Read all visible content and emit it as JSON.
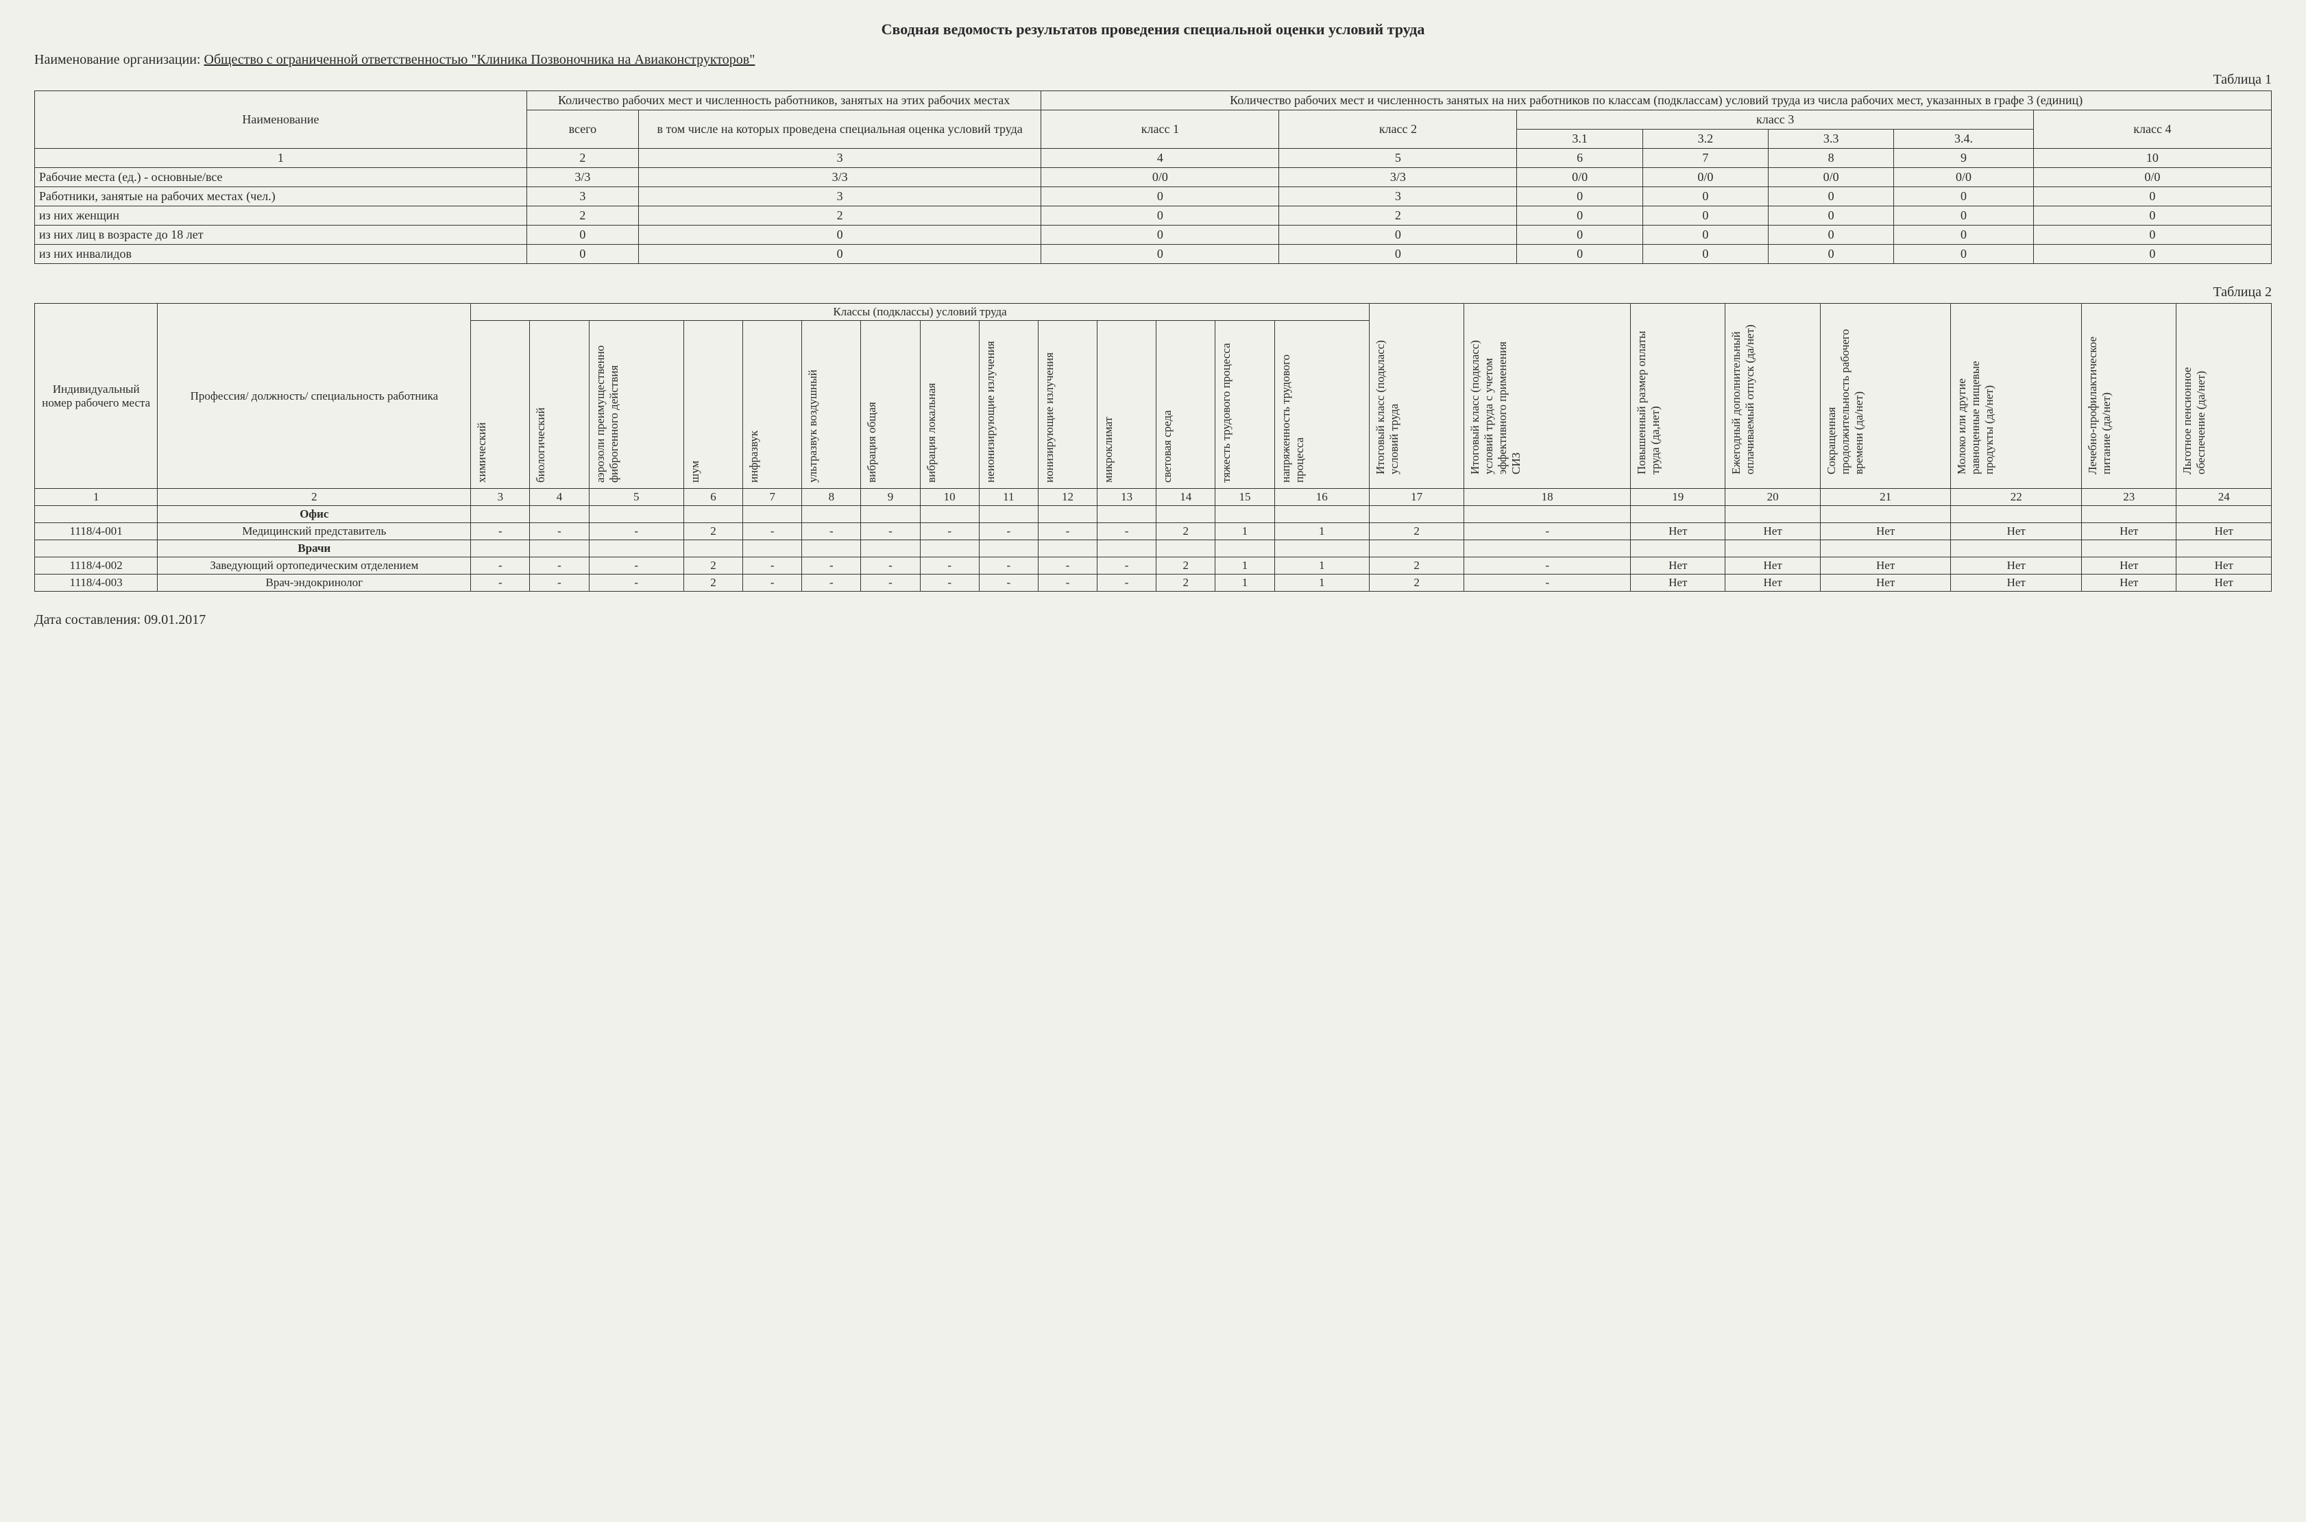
{
  "doc": {
    "title": "Сводная ведомость результатов проведения специальной оценки условий труда",
    "org_label": "Наименование организации:",
    "org_name": "Общество с ограниченной ответственностью \"Клиника Позвоночника на Авиаконструкторов\"",
    "table1_label": "Таблица 1",
    "table2_label": "Таблица 2",
    "date_label": "Дата составления:",
    "date_value": "09.01.2017"
  },
  "t1": {
    "h_name": "Наименование",
    "h_count_group": "Количество рабочих мест и численность работников, занятых на этих рабочих местах",
    "h_class_group": "Количество рабочих мест и численность занятых на них работников по классам (подклассам) условий труда из числа рабочих мест, указанных в графе 3 (единиц)",
    "h_total": "всего",
    "h_assessed": "в том числе на которых проведена специальная оценка условий труда",
    "h_class1": "класс 1",
    "h_class2": "класс 2",
    "h_class3": "класс 3",
    "h_class4": "класс 4",
    "h_31": "3.1",
    "h_32": "3.2",
    "h_33": "3.3",
    "h_34": "3.4.",
    "colnums": [
      "1",
      "2",
      "3",
      "4",
      "5",
      "6",
      "7",
      "8",
      "9",
      "10"
    ],
    "rows": [
      {
        "name": "Рабочие места (ед.)  -  основные/все",
        "v": [
          "3/3",
          "3/3",
          "0/0",
          "3/3",
          "0/0",
          "0/0",
          "0/0",
          "0/0",
          "0/0"
        ]
      },
      {
        "name": "Работники, занятые на рабочих местах (чел.)",
        "v": [
          "3",
          "3",
          "0",
          "3",
          "0",
          "0",
          "0",
          "0",
          "0"
        ]
      },
      {
        "name": "из них женщин",
        "v": [
          "2",
          "2",
          "0",
          "2",
          "0",
          "0",
          "0",
          "0",
          "0"
        ]
      },
      {
        "name": "из них лиц в возрасте до 18 лет",
        "v": [
          "0",
          "0",
          "0",
          "0",
          "0",
          "0",
          "0",
          "0",
          "0"
        ]
      },
      {
        "name": "из них инвалидов",
        "v": [
          "0",
          "0",
          "0",
          "0",
          "0",
          "0",
          "0",
          "0",
          "0"
        ]
      }
    ]
  },
  "t2": {
    "h_id": "Индивидуальный номер рабочего места",
    "h_prof": "Профессия/ должность/ специальность работника",
    "h_classes_group": "Классы (подклассы) условий труда",
    "cols": [
      "химический",
      "биологический",
      "аэрозоли преимущественно фиброгенного действия",
      "шум",
      "инфразвук",
      "ультразвук воздушный",
      "вибрация общая",
      "вибрация локальная",
      "неионизирующие излучения",
      "ионизирующие излучения",
      "микроклимат",
      "световая среда",
      "тяжесть трудового процесса",
      "напряженность трудового процесса"
    ],
    "extra_cols": [
      "Итоговый класс (подкласс) условий труда",
      "Итоговый класс (подкласс) условий труда с учетом эффективного применения СИЗ",
      "Повышенный размер оплаты труда (да,нет)",
      "Ежегодный дополнительный оплачиваемый отпуск (да/нет)",
      "Сокращенная продолжительность рабочего времени (да/нет)",
      "Молоко или другие равноценные пищевые продукты (да/нет)",
      "Лечебно-профилактическое питание  (да/нет)",
      "Льготное пенсионное обеспечение (да/нет)"
    ],
    "colnums": [
      "1",
      "2",
      "3",
      "4",
      "5",
      "6",
      "7",
      "8",
      "9",
      "10",
      "11",
      "12",
      "13",
      "14",
      "15",
      "16",
      "17",
      "18",
      "19",
      "20",
      "21",
      "22",
      "23",
      "24"
    ],
    "sections": [
      {
        "title": "Офис"
      },
      {
        "title": "Врачи"
      }
    ],
    "rows": [
      {
        "section": 0,
        "id": "1118/4-001",
        "prof": "Медицинский представитель",
        "v": [
          "-",
          "-",
          "-",
          "2",
          "-",
          "-",
          "-",
          "-",
          "-",
          "-",
          "-",
          "2",
          "1",
          "1",
          "2",
          "-",
          "Нет",
          "Нет",
          "Нет",
          "Нет",
          "Нет",
          "Нет"
        ]
      },
      {
        "section": 1,
        "id": "1118/4-002",
        "prof": "Заведующий ортопедическим отделением",
        "v": [
          "-",
          "-",
          "-",
          "2",
          "-",
          "-",
          "-",
          "-",
          "-",
          "-",
          "-",
          "2",
          "1",
          "1",
          "2",
          "-",
          "Нет",
          "Нет",
          "Нет",
          "Нет",
          "Нет",
          "Нет"
        ]
      },
      {
        "section": 1,
        "id": "1118/4-003",
        "prof": "Врач-эндокринолог",
        "v": [
          "-",
          "-",
          "-",
          "2",
          "-",
          "-",
          "-",
          "-",
          "-",
          "-",
          "-",
          "2",
          "1",
          "1",
          "2",
          "-",
          "Нет",
          "Нет",
          "Нет",
          "Нет",
          "Нет",
          "Нет"
        ]
      }
    ]
  }
}
